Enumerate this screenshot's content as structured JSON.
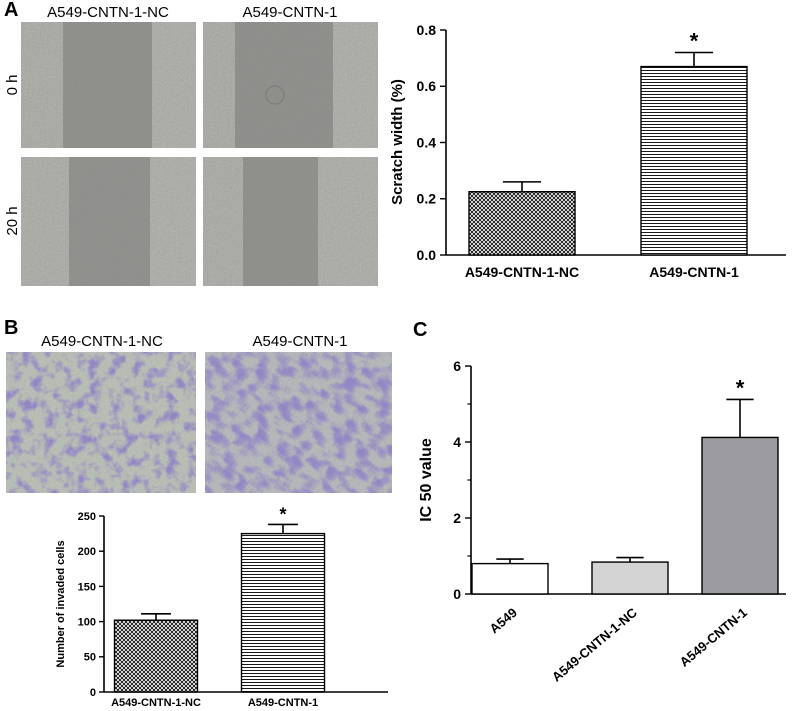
{
  "panels": {
    "A": {
      "letter": "A",
      "micrograph_columns": [
        "A549-CNTN-1-NC",
        "A549-CNTN-1"
      ],
      "micrograph_rows": [
        "0 h",
        "20 h"
      ]
    },
    "B": {
      "letter": "B",
      "micrograph_columns": [
        "A549-CNTN-1-NC",
        "A549-CNTN-1"
      ]
    },
    "C": {
      "letter": "C"
    }
  },
  "colors": {
    "micrograph_gray": "#8f908c",
    "stain_purple": "#4a3f8e",
    "bar_white": "#ffffff",
    "bar_light_gray": "#d4d4d4",
    "bar_dark_gray": "#9c9ca0",
    "axis": "#000000"
  },
  "chart_data": [
    {
      "id": "A",
      "type": "bar",
      "categories": [
        "A549-CNTN-1-NC",
        "A549-CNTN-1"
      ],
      "values": [
        0.225,
        0.67
      ],
      "errors": [
        0.035,
        0.05
      ],
      "annotations": [
        "",
        "*"
      ],
      "fills": [
        "crosshatch",
        "horizontal-lines"
      ],
      "xlabel": "",
      "ylabel": "Scratch width (%)",
      "ylim": [
        0,
        0.8
      ],
      "yticks": [
        0.0,
        0.2,
        0.4,
        0.6,
        0.8
      ],
      "ytick_labels": [
        "0.0",
        "0.2",
        "0.4",
        "0.6",
        "0.8"
      ],
      "grid": false,
      "legend": "none"
    },
    {
      "id": "B",
      "type": "bar",
      "categories": [
        "A549-CNTN-1-NC",
        "A549-CNTN-1"
      ],
      "values": [
        102,
        225
      ],
      "errors": [
        9,
        13
      ],
      "annotations": [
        "",
        "*"
      ],
      "fills": [
        "crosshatch",
        "horizontal-lines"
      ],
      "xlabel": "",
      "ylabel": "Number of invaded cells",
      "ylim": [
        0,
        250
      ],
      "yticks": [
        0,
        50,
        100,
        150,
        200,
        250
      ],
      "ytick_labels": [
        "0",
        "50",
        "100",
        "150",
        "200",
        "250"
      ],
      "grid": false,
      "legend": "none"
    },
    {
      "id": "C",
      "type": "bar",
      "categories": [
        "A549",
        "A549-CNTN-1-NC",
        "A549-CNTN-1"
      ],
      "values": [
        0.8,
        0.84,
        4.12
      ],
      "errors": [
        0.12,
        0.12,
        1.0
      ],
      "annotations": [
        "",
        "",
        "*"
      ],
      "fills": [
        "white",
        "light-gray",
        "dark-gray"
      ],
      "xlabel": "",
      "ylabel": "IC 50 value",
      "ylim": [
        0,
        6
      ],
      "yticks": [
        0,
        2,
        4,
        6
      ],
      "ytick_labels": [
        "0",
        "2",
        "4",
        "6"
      ],
      "minor_yticks": [
        1,
        3,
        5
      ],
      "grid": false,
      "legend": "none"
    }
  ]
}
